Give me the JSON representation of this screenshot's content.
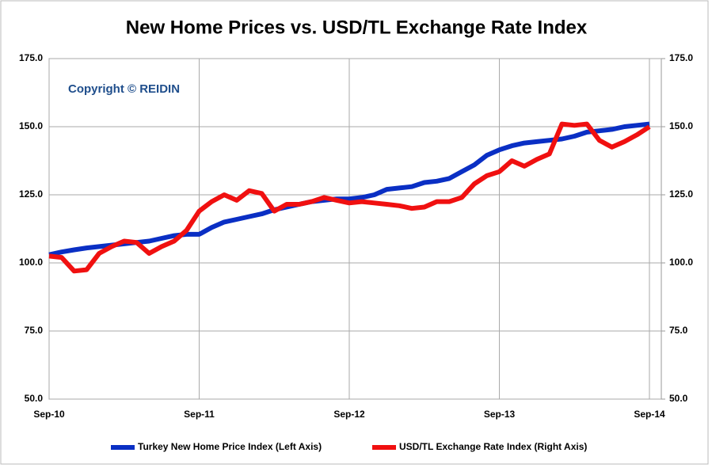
{
  "chart_data": {
    "type": "line",
    "title": "New Home Prices vs. USD/TL Exchange Rate Index",
    "annotation": "Copyright © REIDIN",
    "categories": [
      "Sep-10",
      null,
      null,
      null,
      null,
      null,
      null,
      null,
      null,
      null,
      null,
      null,
      "Sep-11",
      null,
      null,
      null,
      null,
      null,
      null,
      null,
      null,
      null,
      null,
      null,
      "Sep-12",
      null,
      null,
      null,
      null,
      null,
      null,
      null,
      null,
      null,
      null,
      null,
      "Sep-13",
      null,
      null,
      null,
      null,
      null,
      null,
      null,
      null,
      null,
      null,
      null,
      "Sep-14"
    ],
    "series": [
      {
        "name": "Turkey New Home Price Index (Left Axis)",
        "color": "#0a2fc4",
        "values": [
          103,
          104,
          104.8,
          105.5,
          106,
          106.5,
          107,
          107.5,
          108,
          109,
          110,
          110.5,
          110.5,
          113,
          115,
          116,
          117,
          118,
          119.5,
          120.5,
          121.5,
          122.5,
          123,
          123.5,
          123.5,
          124,
          125,
          127,
          127.5,
          128,
          129.5,
          130,
          131,
          133.5,
          136,
          139.5,
          141.5,
          143,
          144,
          144.5,
          145,
          145.5,
          146.5,
          148,
          148.5,
          149,
          150,
          150.5,
          151
        ]
      },
      {
        "name": "USD/TL Exchange Rate Index (Right Axis)",
        "color": "#f01010",
        "axis": "y2",
        "values": [
          102.5,
          102,
          97,
          97.5,
          103.5,
          106,
          108,
          107.5,
          103.5,
          106,
          108,
          112,
          119,
          122.5,
          125,
          123,
          126.5,
          125.5,
          119,
          121.5,
          121.5,
          122.5,
          124,
          123,
          122,
          122.5,
          122,
          121.5,
          121,
          120,
          120.5,
          122.5,
          122.5,
          124,
          129,
          132,
          133.5,
          137.5,
          135.5,
          138,
          140,
          151,
          150.5,
          151,
          145,
          142.5,
          144.5,
          147,
          150
        ]
      }
    ],
    "ylim": [
      50,
      175
    ],
    "yticks": [
      {
        "value": 50,
        "label": "50.0"
      },
      {
        "value": 75,
        "label": "75.0"
      },
      {
        "value": 100,
        "label": "100.0"
      },
      {
        "value": 125,
        "label": "125.0"
      },
      {
        "value": 150,
        "label": "150.0"
      },
      {
        "value": 175,
        "label": "175.0"
      }
    ],
    "y2lim": [
      50,
      175
    ],
    "y2ticks": [
      {
        "value": 50,
        "label": "50.0"
      },
      {
        "value": 75,
        "label": "75.0"
      },
      {
        "value": 100,
        "label": "100.0"
      },
      {
        "value": 125,
        "label": "125.0"
      },
      {
        "value": 150,
        "label": "150.0"
      },
      {
        "value": 175,
        "label": "175.0"
      }
    ],
    "grid": true,
    "legend": "bottom"
  }
}
